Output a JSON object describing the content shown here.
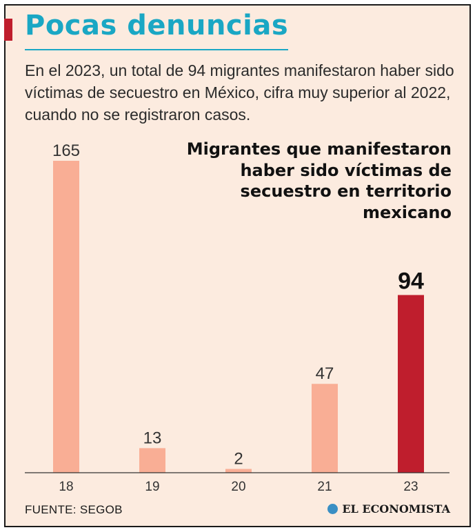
{
  "headline": "Pocas denuncias",
  "dek": "En el 2023, un total de 94 migrantes manifestaron haber sido víctimas de secuestro en México, cifra muy superior al 2022, cuando no se registraron casos.",
  "source": "FUENTE: SEGOB",
  "brand": "EL ECONOMISTA",
  "colors": {
    "headline": "#1aa7c4",
    "bar": "#f9ae95",
    "highlight": "#bf1e2d",
    "axis": "#333333",
    "label": "#333333"
  },
  "chart_data": {
    "type": "bar",
    "title": "Migrantes que manifestaron haber sido víctimas de secuestro en territorio mexicano",
    "categories": [
      "18",
      "19",
      "20",
      "21",
      "23"
    ],
    "values": [
      165,
      13,
      2,
      47,
      94
    ],
    "highlight_index": 4,
    "xlabel": "",
    "ylabel": "",
    "ylim": [
      0,
      165
    ],
    "grid": false
  }
}
